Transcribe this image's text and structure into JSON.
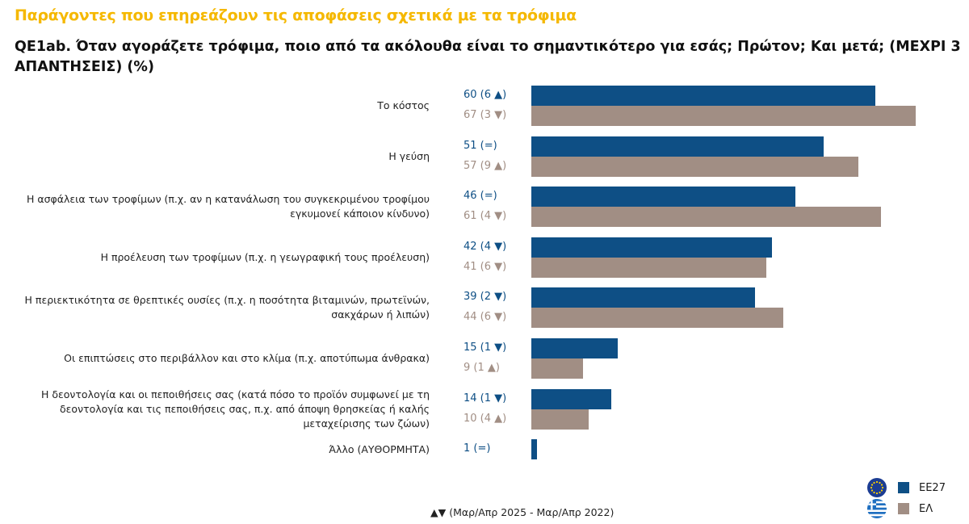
{
  "header": {
    "supertitle": "Παράγοντες που επηρεάζουν τις αποφάσεις σχετικά με τα τρόφιμα",
    "title": "QE1ab. Όταν αγοράζετε τρόφιμα, ποιο από τα ακόλουθα είναι το σημαντικότερο για εσάς; Πρώτον; Και μετά; (ΜΕΧΡΙ 3 ΑΠΑΝΤΗΣΕΙΣ) (%)"
  },
  "chart_data": {
    "type": "bar",
    "orientation": "horizontal",
    "title": "QE1ab. Όταν αγοράζετε τρόφιμα, ποιο από τα ακόλουθα είναι το σημαντικότερο για εσάς; Πρώτον; Και μετά; (ΜΕΧΡΙ 3 ΑΠΑΝΤΗΣΕΙΣ) (%)",
    "categories": [
      "Το κόστος",
      "Η γεύση",
      "Η ασφάλεια των τροφίμων (π.χ. αν η κατανάλωση του συγκεκριμένου τροφίμου εγκυμονεί κάποιον κίνδυνο)",
      "Η προέλευση των τροφίμων (π.χ. η γεωγραφική τους προέλευση)",
      "Η περιεκτικότητα σε θρεπτικές ουσίες (π.χ. η ποσότητα βιταμινών, πρωτεϊνών, σακχάρων ή λιπών)",
      "Οι επιπτώσεις στο περιβάλλον και στο κλίμα (π.χ. αποτύπωμα άνθρακα)",
      "Η δεοντολογία και οι πεποιθήσεις σας (κατά πόσο το προϊόν συμφωνεί με τη δεοντολογία και τις πεποιθήσεις σας, π.χ. από άποψη θρησκείας ή καλής μεταχείρισης των ζώων)",
      "Άλλο (ΑΥΘΟΡΜΗΤΑ)"
    ],
    "series": [
      {
        "name": "ΕΕ27",
        "color": "#0e4f85",
        "values": [
          60,
          51,
          46,
          42,
          39,
          15,
          14,
          1
        ],
        "labels": [
          "60 (6 ▲)",
          "51 (=)",
          "46 (=)",
          "42 (4 ▼)",
          "39 (2 ▼)",
          "15 (1 ▼)",
          "14 (1 ▼)",
          "1 (=)"
        ]
      },
      {
        "name": "ΕΛ",
        "color": "#a18e84",
        "values": [
          67,
          57,
          61,
          41,
          44,
          9,
          10,
          null
        ],
        "labels": [
          "67 (3 ▼)",
          "57 (9 ▲)",
          "61 (4 ▼)",
          "41 (6 ▼)",
          "44 (6 ▼)",
          "9 (1 ▲)",
          "10 (4 ▲)",
          null
        ]
      }
    ],
    "xlim": [
      0,
      70
    ],
    "note": "▲▼ (Μαρ/Απρ 2025 - Μαρ/Απρ 2022)",
    "legend_position": "bottom-right"
  }
}
